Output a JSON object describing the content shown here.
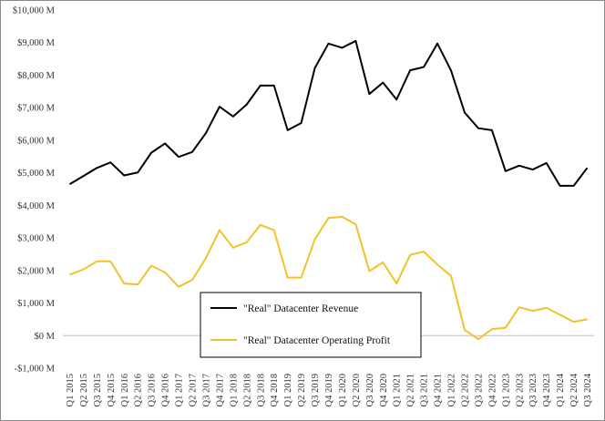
{
  "chart_data": {
    "type": "line",
    "title": "",
    "xlabel": "",
    "ylabel": "",
    "ylim": [
      -1000,
      10000
    ],
    "y_ticks": [
      -1000,
      0,
      1000,
      2000,
      3000,
      4000,
      5000,
      6000,
      7000,
      8000,
      9000,
      10000
    ],
    "y_tick_labels": [
      "-$1,000 M",
      "$0 M",
      "$1,000 M",
      "$2,000 M",
      "$3,000 M",
      "$4,000 M",
      "$5,000 M",
      "$6,000 M",
      "$7,000 M",
      "$8,000 M",
      "$9,000 M",
      "$10,000 M"
    ],
    "grid": false,
    "legend_position": "bottom-center",
    "categories": [
      "Q1 2015",
      "Q2 2015",
      "Q3 2015",
      "Q4 2015",
      "Q1 2016",
      "Q2 2016",
      "Q3 2016",
      "Q4 2016",
      "Q1 2017",
      "Q2 2017",
      "Q3 2017",
      "Q4 2017",
      "Q1 2018",
      "Q2 2018",
      "Q3 2018",
      "Q4 2018",
      "Q1 2019",
      "Q2 2019",
      "Q3 2019",
      "Q4 2019",
      "Q1 2020",
      "Q2 2020",
      "Q3 2020",
      "Q4 2020",
      "Q1 2021",
      "Q2 2021",
      "Q3 2021",
      "Q4 2021",
      "Q1 2022",
      "Q2 2022",
      "Q3 2022",
      "Q4 2022",
      "Q1 2023",
      "Q2 2023",
      "Q3 2023",
      "Q4 2023",
      "Q1 2024",
      "Q2 2024",
      "Q3 2024"
    ],
    "series": [
      {
        "name": "\"Real\" Datacenter Revenue",
        "color": "#000000",
        "values": [
          4650,
          4900,
          5150,
          5320,
          4920,
          5010,
          5620,
          5900,
          5490,
          5640,
          6220,
          7030,
          6730,
          7100,
          7680,
          7680,
          6310,
          6530,
          8220,
          8970,
          8840,
          9050,
          7420,
          7770,
          7250,
          8150,
          8250,
          8970,
          8140,
          6850,
          6370,
          6310,
          5050,
          5220,
          5100,
          5300,
          4600,
          4600,
          5150
        ]
      },
      {
        "name": "\"Real\" Datacenter Operating Profit",
        "color": "#f2c22b",
        "values": [
          1870,
          2030,
          2280,
          2280,
          1600,
          1570,
          2150,
          1940,
          1500,
          1710,
          2380,
          3240,
          2700,
          2870,
          3400,
          3240,
          1780,
          1780,
          2960,
          3610,
          3650,
          3420,
          1980,
          2250,
          1600,
          2480,
          2580,
          2180,
          1830,
          170,
          -110,
          200,
          240,
          870,
          760,
          850,
          640,
          420,
          500
        ]
      }
    ]
  }
}
